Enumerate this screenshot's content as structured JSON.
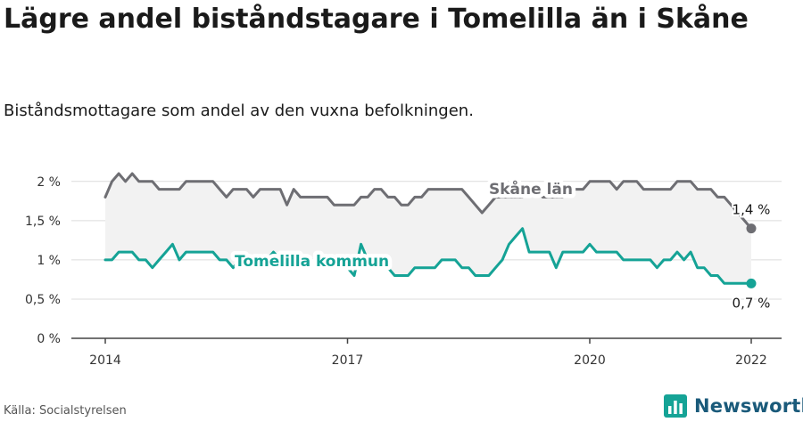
{
  "header": {
    "title": "Lägre andel biståndstagare i Tomelilla än i Skåne",
    "subtitle": "Biståndsmottagare som andel av den vuxna befolkningen."
  },
  "footer": {
    "source": "Källa: Socialstyrelsen",
    "brand": "Newsworthy",
    "brand_icon": "bar-chart-logo-icon"
  },
  "colors": {
    "skane": "#6e6e73",
    "tomelilla": "#15a396",
    "band": "#f2f2f2",
    "grid": "#dcdcdc",
    "axis": "#444444",
    "brand": "#1a5a7a"
  },
  "chart_data": {
    "type": "line",
    "xlabel": "",
    "ylabel": "",
    "x_ticks": [
      "2014",
      "2017",
      "2020",
      "2022"
    ],
    "y_ticks": [
      "0 %",
      "0,5 %",
      "1 %",
      "1,5 %",
      "2 %"
    ],
    "xlim": [
      "2014-01",
      "2022-01"
    ],
    "ylim": [
      0,
      2.1
    ],
    "grid": true,
    "shaded_band_between_series": true,
    "series": [
      {
        "name": "Skåne län",
        "end_label": "1,4 %",
        "points": [
          [
            "2014-01",
            1.8
          ],
          [
            "2014-02",
            2.0
          ],
          [
            "2014-03",
            2.1
          ],
          [
            "2014-04",
            2.0
          ],
          [
            "2014-05",
            2.1
          ],
          [
            "2014-06",
            2.0
          ],
          [
            "2014-07",
            2.0
          ],
          [
            "2014-08",
            2.0
          ],
          [
            "2014-09",
            1.9
          ],
          [
            "2014-10",
            1.9
          ],
          [
            "2014-11",
            1.9
          ],
          [
            "2014-12",
            1.9
          ],
          [
            "2015-01",
            2.0
          ],
          [
            "2015-02",
            2.0
          ],
          [
            "2015-03",
            2.0
          ],
          [
            "2015-04",
            2.0
          ],
          [
            "2015-05",
            2.0
          ],
          [
            "2015-06",
            1.9
          ],
          [
            "2015-07",
            1.8
          ],
          [
            "2015-08",
            1.9
          ],
          [
            "2015-09",
            1.9
          ],
          [
            "2015-10",
            1.9
          ],
          [
            "2015-11",
            1.8
          ],
          [
            "2015-12",
            1.9
          ],
          [
            "2016-01",
            1.9
          ],
          [
            "2016-02",
            1.9
          ],
          [
            "2016-03",
            1.9
          ],
          [
            "2016-04",
            1.7
          ],
          [
            "2016-05",
            1.9
          ],
          [
            "2016-06",
            1.8
          ],
          [
            "2016-07",
            1.8
          ],
          [
            "2016-08",
            1.8
          ],
          [
            "2016-09",
            1.8
          ],
          [
            "2016-10",
            1.8
          ],
          [
            "2016-11",
            1.7
          ],
          [
            "2016-12",
            1.7
          ],
          [
            "2017-01",
            1.7
          ],
          [
            "2017-02",
            1.7
          ],
          [
            "2017-03",
            1.8
          ],
          [
            "2017-04",
            1.8
          ],
          [
            "2017-05",
            1.9
          ],
          [
            "2017-06",
            1.9
          ],
          [
            "2017-07",
            1.8
          ],
          [
            "2017-08",
            1.8
          ],
          [
            "2017-09",
            1.7
          ],
          [
            "2017-10",
            1.7
          ],
          [
            "2017-11",
            1.8
          ],
          [
            "2017-12",
            1.8
          ],
          [
            "2018-01",
            1.9
          ],
          [
            "2018-02",
            1.9
          ],
          [
            "2018-03",
            1.9
          ],
          [
            "2018-04",
            1.9
          ],
          [
            "2018-05",
            1.9
          ],
          [
            "2018-06",
            1.9
          ],
          [
            "2018-07",
            1.8
          ],
          [
            "2018-08",
            1.7
          ],
          [
            "2018-09",
            1.6
          ],
          [
            "2018-10",
            1.7
          ],
          [
            "2018-11",
            1.8
          ],
          [
            "2018-12",
            1.8
          ],
          [
            "2019-01",
            1.8
          ],
          [
            "2019-02",
            1.8
          ],
          [
            "2019-03",
            1.8
          ],
          [
            "2019-04",
            1.9
          ],
          [
            "2019-05",
            1.9
          ],
          [
            "2019-06",
            1.8
          ],
          [
            "2019-07",
            1.8
          ],
          [
            "2019-08",
            1.8
          ],
          [
            "2019-09",
            1.8
          ],
          [
            "2019-10",
            1.9
          ],
          [
            "2019-11",
            1.9
          ],
          [
            "2019-12",
            1.9
          ],
          [
            "2020-01",
            2.0
          ],
          [
            "2020-02",
            2.0
          ],
          [
            "2020-03",
            2.0
          ],
          [
            "2020-04",
            2.0
          ],
          [
            "2020-05",
            1.9
          ],
          [
            "2020-06",
            2.0
          ],
          [
            "2020-07",
            2.0
          ],
          [
            "2020-08",
            2.0
          ],
          [
            "2020-09",
            1.9
          ],
          [
            "2020-10",
            1.9
          ],
          [
            "2020-11",
            1.9
          ],
          [
            "2020-12",
            1.9
          ],
          [
            "2021-01",
            1.9
          ],
          [
            "2021-02",
            2.0
          ],
          [
            "2021-03",
            2.0
          ],
          [
            "2021-04",
            2.0
          ],
          [
            "2021-05",
            1.9
          ],
          [
            "2021-06",
            1.9
          ],
          [
            "2021-07",
            1.9
          ],
          [
            "2021-08",
            1.8
          ],
          [
            "2021-09",
            1.8
          ],
          [
            "2021-10",
            1.7
          ],
          [
            "2021-11",
            1.6
          ],
          [
            "2021-12",
            1.5
          ],
          [
            "2022-01",
            1.4
          ]
        ]
      },
      {
        "name": "Tomelilla kommun",
        "end_label": "0,7 %",
        "points": [
          [
            "2014-01",
            1.0
          ],
          [
            "2014-02",
            1.0
          ],
          [
            "2014-03",
            1.1
          ],
          [
            "2014-04",
            1.1
          ],
          [
            "2014-05",
            1.1
          ],
          [
            "2014-06",
            1.0
          ],
          [
            "2014-07",
            1.0
          ],
          [
            "2014-08",
            0.9
          ],
          [
            "2014-09",
            1.0
          ],
          [
            "2014-10",
            1.1
          ],
          [
            "2014-11",
            1.2
          ],
          [
            "2014-12",
            1.0
          ],
          [
            "2015-01",
            1.1
          ],
          [
            "2015-02",
            1.1
          ],
          [
            "2015-03",
            1.1
          ],
          [
            "2015-04",
            1.1
          ],
          [
            "2015-05",
            1.1
          ],
          [
            "2015-06",
            1.0
          ],
          [
            "2015-07",
            1.0
          ],
          [
            "2015-08",
            0.9
          ],
          [
            "2015-09",
            1.0
          ],
          [
            "2015-10",
            1.0
          ],
          [
            "2015-11",
            1.0
          ],
          [
            "2015-12",
            1.0
          ],
          [
            "2016-01",
            1.0
          ],
          [
            "2016-02",
            1.1
          ],
          [
            "2016-03",
            1.0
          ],
          [
            "2016-04",
            1.0
          ],
          [
            "2016-05",
            1.0
          ],
          [
            "2016-06",
            1.0
          ],
          [
            "2016-07",
            1.0
          ],
          [
            "2016-08",
            1.0
          ],
          [
            "2016-09",
            1.0
          ],
          [
            "2016-10",
            0.9
          ],
          [
            "2016-11",
            0.9
          ],
          [
            "2016-12",
            0.9
          ],
          [
            "2017-01",
            0.9
          ],
          [
            "2017-02",
            0.8
          ],
          [
            "2017-03",
            1.2
          ],
          [
            "2017-04",
            1.0
          ],
          [
            "2017-05",
            1.0
          ],
          [
            "2017-06",
            0.9
          ],
          [
            "2017-07",
            0.9
          ],
          [
            "2017-08",
            0.8
          ],
          [
            "2017-09",
            0.8
          ],
          [
            "2017-10",
            0.8
          ],
          [
            "2017-11",
            0.9
          ],
          [
            "2017-12",
            0.9
          ],
          [
            "2018-01",
            0.9
          ],
          [
            "2018-02",
            0.9
          ],
          [
            "2018-03",
            1.0
          ],
          [
            "2018-04",
            1.0
          ],
          [
            "2018-05",
            1.0
          ],
          [
            "2018-06",
            0.9
          ],
          [
            "2018-07",
            0.9
          ],
          [
            "2018-08",
            0.8
          ],
          [
            "2018-09",
            0.8
          ],
          [
            "2018-10",
            0.8
          ],
          [
            "2018-11",
            0.9
          ],
          [
            "2018-12",
            1.0
          ],
          [
            "2019-01",
            1.2
          ],
          [
            "2019-02",
            1.3
          ],
          [
            "2019-03",
            1.4
          ],
          [
            "2019-04",
            1.1
          ],
          [
            "2019-05",
            1.1
          ],
          [
            "2019-06",
            1.1
          ],
          [
            "2019-07",
            1.1
          ],
          [
            "2019-08",
            0.9
          ],
          [
            "2019-09",
            1.1
          ],
          [
            "2019-10",
            1.1
          ],
          [
            "2019-11",
            1.1
          ],
          [
            "2019-12",
            1.1
          ],
          [
            "2020-01",
            1.2
          ],
          [
            "2020-02",
            1.1
          ],
          [
            "2020-03",
            1.1
          ],
          [
            "2020-04",
            1.1
          ],
          [
            "2020-05",
            1.1
          ],
          [
            "2020-06",
            1.0
          ],
          [
            "2020-07",
            1.0
          ],
          [
            "2020-08",
            1.0
          ],
          [
            "2020-09",
            1.0
          ],
          [
            "2020-10",
            1.0
          ],
          [
            "2020-11",
            0.9
          ],
          [
            "2020-12",
            1.0
          ],
          [
            "2021-01",
            1.0
          ],
          [
            "2021-02",
            1.1
          ],
          [
            "2021-03",
            1.0
          ],
          [
            "2021-04",
            1.1
          ],
          [
            "2021-05",
            0.9
          ],
          [
            "2021-06",
            0.9
          ],
          [
            "2021-07",
            0.8
          ],
          [
            "2021-08",
            0.8
          ],
          [
            "2021-09",
            0.7
          ],
          [
            "2021-10",
            0.7
          ],
          [
            "2021-11",
            0.7
          ],
          [
            "2021-12",
            0.7
          ],
          [
            "2022-01",
            0.7
          ]
        ]
      }
    ]
  }
}
